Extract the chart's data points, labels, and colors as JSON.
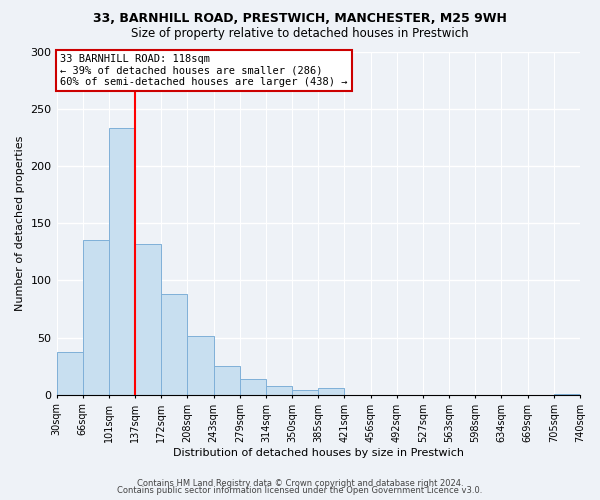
{
  "title1": "33, BARNHILL ROAD, PRESTWICH, MANCHESTER, M25 9WH",
  "title2": "Size of property relative to detached houses in Prestwich",
  "xlabel": "Distribution of detached houses by size in Prestwich",
  "ylabel": "Number of detached properties",
  "bar_values": [
    37,
    135,
    233,
    132,
    88,
    51,
    25,
    14,
    8,
    4,
    6,
    0,
    0,
    0,
    0,
    0,
    0,
    0,
    0,
    1
  ],
  "bin_labels": [
    "30sqm",
    "66sqm",
    "101sqm",
    "137sqm",
    "172sqm",
    "208sqm",
    "243sqm",
    "279sqm",
    "314sqm",
    "350sqm",
    "385sqm",
    "421sqm",
    "456sqm",
    "492sqm",
    "527sqm",
    "563sqm",
    "598sqm",
    "634sqm",
    "669sqm",
    "705sqm",
    "740sqm"
  ],
  "bar_color": "#c8dff0",
  "bar_edge_color": "#7fb0d8",
  "red_line_index": 2,
  "annotation_title": "33 BARNHILL ROAD: 118sqm",
  "annotation_line1": "← 39% of detached houses are smaller (286)",
  "annotation_line2": "60% of semi-detached houses are larger (438) →",
  "annotation_box_color": "#ffffff",
  "annotation_box_edge": "#cc0000",
  "ylim": [
    0,
    300
  ],
  "yticks": [
    0,
    50,
    100,
    150,
    200,
    250,
    300
  ],
  "footer1": "Contains HM Land Registry data © Crown copyright and database right 2024.",
  "footer2": "Contains public sector information licensed under the Open Government Licence v3.0.",
  "background_color": "#eef2f7",
  "plot_bg_color": "#eef2f7",
  "grid_color": "#ffffff",
  "title1_fontsize": 9,
  "title2_fontsize": 8.5,
  "ylabel_fontsize": 8,
  "xlabel_fontsize": 8,
  "tick_fontsize": 7,
  "annotation_fontsize": 7.5,
  "footer_fontsize": 6
}
